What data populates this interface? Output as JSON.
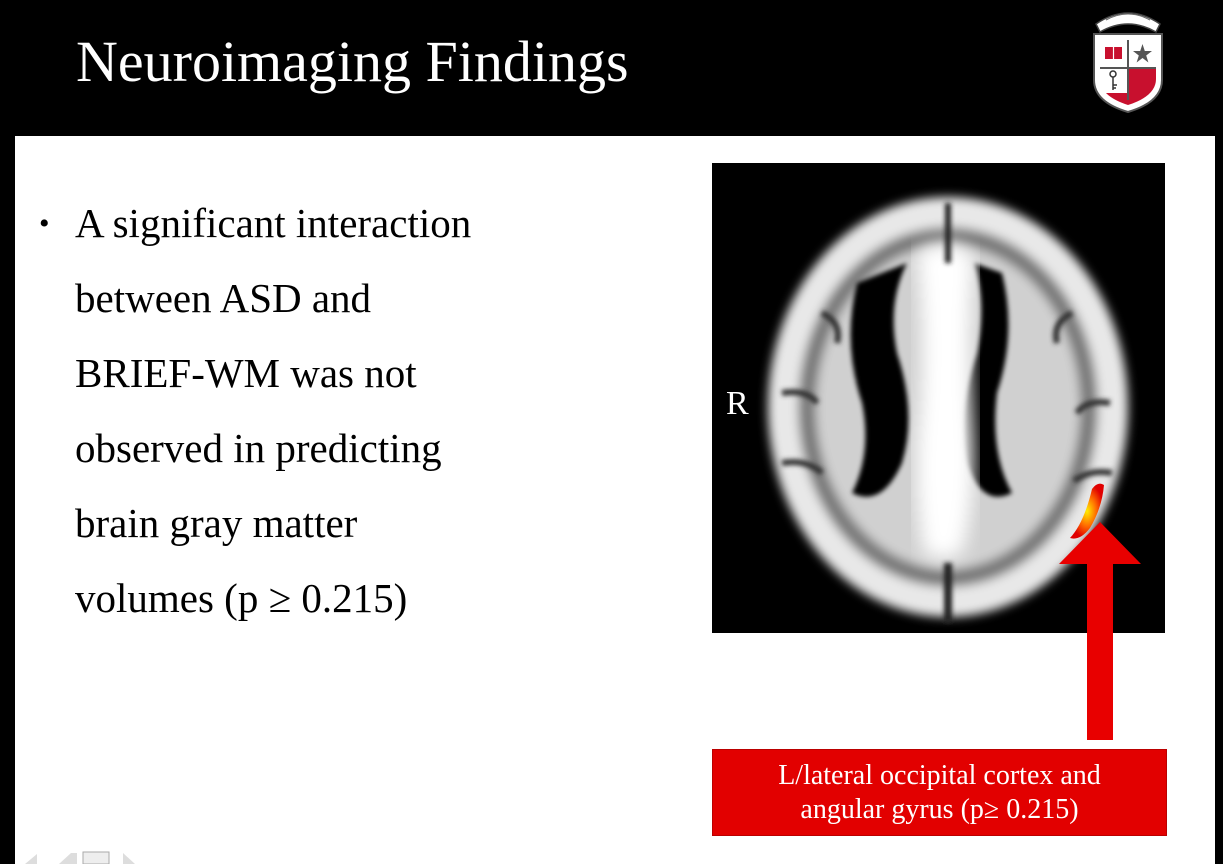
{
  "slide": {
    "title": "Neuroimaging Findings",
    "bullets": [
      {
        "text": "A significant interaction\nbetween ASD and\nBRIEF-WM was not\nobserved in predicting\nbrain gray matter\nvolumes (p ≥ 0.215)"
      }
    ],
    "figure": {
      "orientation_label": "R",
      "caption_line1": "L/lateral occipital cortex and",
      "caption_line2": "angular gyrus (p≥ 0.215)"
    }
  },
  "logo": {
    "icon": "university-crest-icon"
  },
  "colors": {
    "header_bg": "#000000",
    "slide_bg": "#ffffff",
    "accent_red": "#e20000",
    "text": "#000000"
  }
}
